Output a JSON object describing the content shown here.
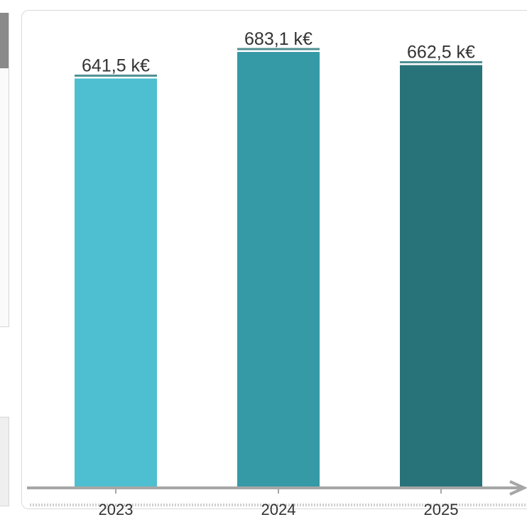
{
  "chart_data": {
    "type": "bar",
    "categories": [
      "2023",
      "2024",
      "2025"
    ],
    "values": [
      641.5,
      683.1,
      662.5
    ],
    "data_labels": [
      "641,5 k€",
      "683,1 k€",
      "662,5 k€"
    ],
    "unit": "k€",
    "title": "",
    "xlabel": "",
    "ylabel": "",
    "ylim": [
      0,
      700
    ],
    "grid": false,
    "legend": "none",
    "colors": [
      "#4dbfd0",
      "#3599a6",
      "#28737a"
    ],
    "axis_color": "#a6a6a6",
    "label_underline_color": "#4f8f92"
  }
}
